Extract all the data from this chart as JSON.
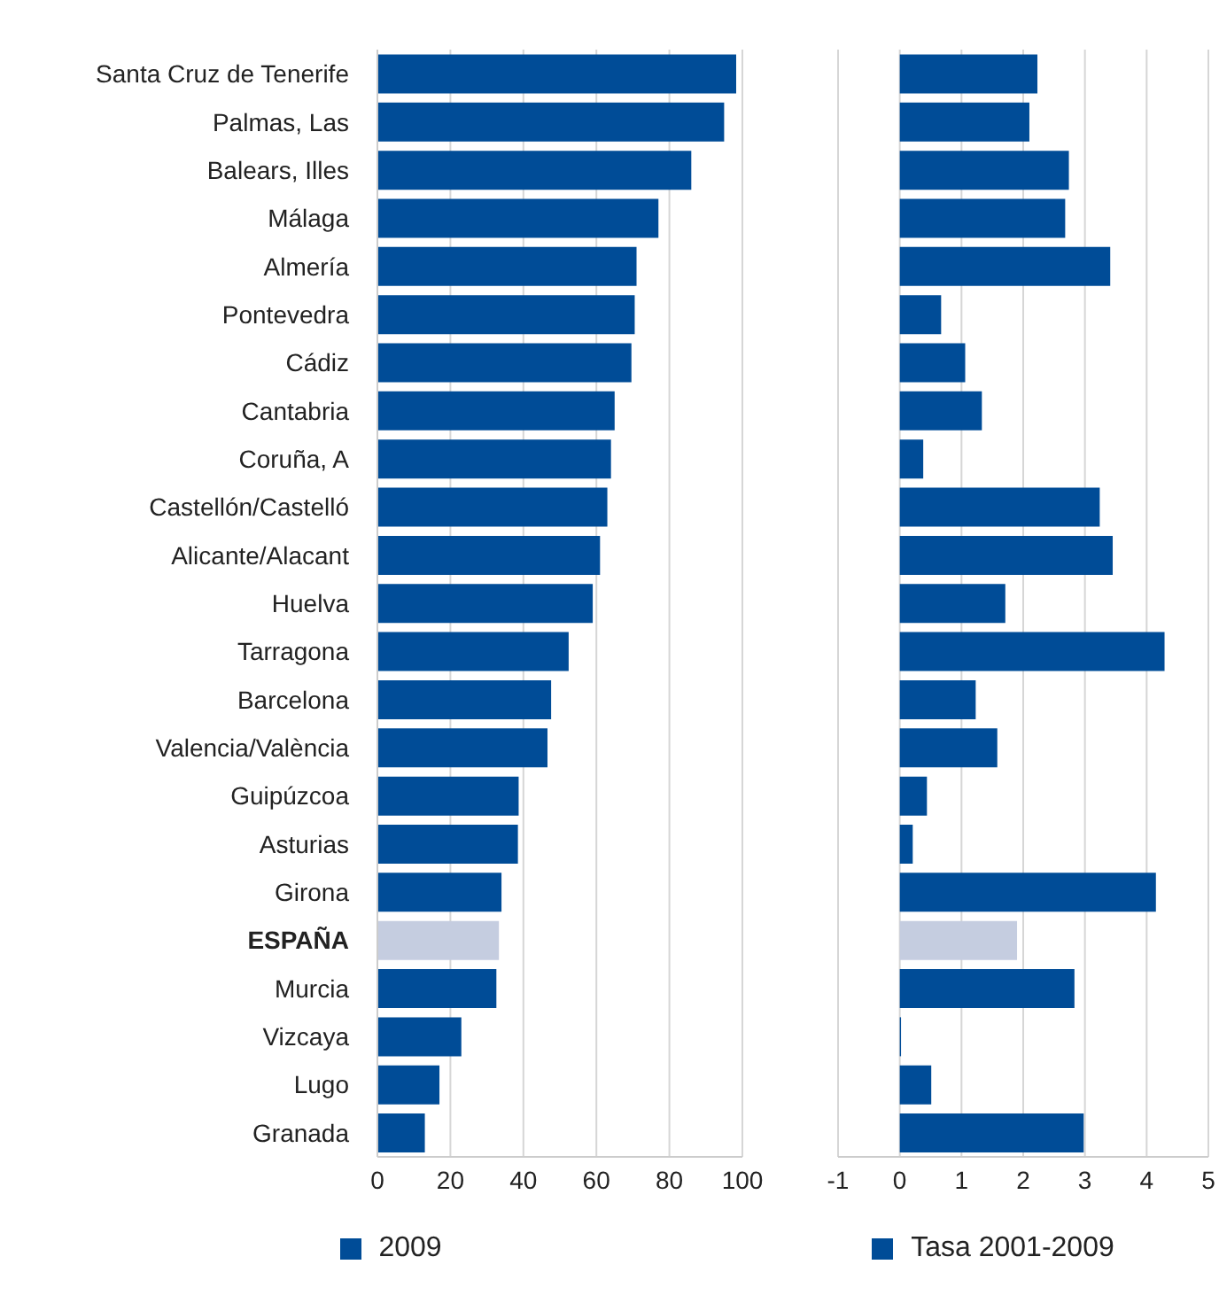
{
  "chart_data": [
    {
      "type": "bar",
      "orientation": "horizontal",
      "categories": [
        "Santa Cruz de Tenerife",
        "Palmas, Las",
        "Balears, Illes",
        "Málaga",
        "Almería",
        "Pontevedra",
        "Cádiz",
        "Cantabria",
        "Coruña, A",
        "Castellón/Castelló",
        "Alicante/Alacant",
        "Huelva",
        "Tarragona",
        "Barcelona",
        "Valencia/València",
        "Guipúzcoa",
        "Asturias",
        "Girona",
        "ESPAÑA",
        "Murcia",
        "Vizcaya",
        "Lugo",
        "Granada"
      ],
      "series": [
        {
          "name": "2009",
          "color": "#004c97",
          "colors": [
            "#004c97",
            "#004c97",
            "#004c97",
            "#004c97",
            "#004c97",
            "#004c97",
            "#004c97",
            "#004c97",
            "#004c97",
            "#004c97",
            "#004c97",
            "#004c97",
            "#004c97",
            "#004c97",
            "#004c97",
            "#004c97",
            "#004c97",
            "#004c97",
            "#c5cde0",
            "#004c97",
            "#004c97",
            "#004c97",
            "#004c97"
          ],
          "values": [
            98.3,
            95,
            86,
            77,
            71,
            70.5,
            69.6,
            65,
            64,
            63,
            61,
            59,
            52.4,
            47.6,
            46.6,
            38.7,
            38.5,
            34,
            33.3,
            32.6,
            23,
            17,
            13
          ]
        }
      ],
      "xlim": [
        0,
        100
      ],
      "xticks": [
        0,
        20,
        40,
        60,
        80,
        100
      ],
      "grid": "x",
      "legend": "bottom"
    },
    {
      "type": "bar",
      "orientation": "horizontal",
      "categories": [
        null,
        null,
        null,
        null,
        null,
        null,
        null,
        null,
        null,
        null,
        null,
        null,
        null,
        null,
        null,
        null,
        null,
        null,
        null,
        null,
        null,
        null,
        null
      ],
      "series": [
        {
          "name": "Tasa 2001-2009",
          "color": "#004c97",
          "colors": [
            "#004c97",
            "#004c97",
            "#004c97",
            "#004c97",
            "#004c97",
            "#004c97",
            "#004c97",
            "#004c97",
            "#004c97",
            "#004c97",
            "#004c97",
            "#004c97",
            "#004c97",
            "#004c97",
            "#004c97",
            "#004c97",
            "#004c97",
            "#004c97",
            "#c5cde0",
            "#004c97",
            "#004c97",
            "#004c97",
            "#004c97"
          ],
          "values": [
            2.23,
            2.1,
            2.74,
            2.68,
            3.41,
            0.67,
            1.06,
            1.33,
            0.38,
            3.24,
            3.45,
            1.71,
            4.29,
            1.23,
            1.58,
            0.44,
            0.21,
            4.15,
            1.9,
            2.83,
            0.02,
            0.51,
            2.98
          ]
        }
      ],
      "xlim": [
        -1,
        5
      ],
      "xticks": [
        -1,
        0,
        1,
        2,
        3,
        4,
        5
      ],
      "grid": "x",
      "legend": "bottom",
      "tick_labels": "x"
    }
  ]
}
